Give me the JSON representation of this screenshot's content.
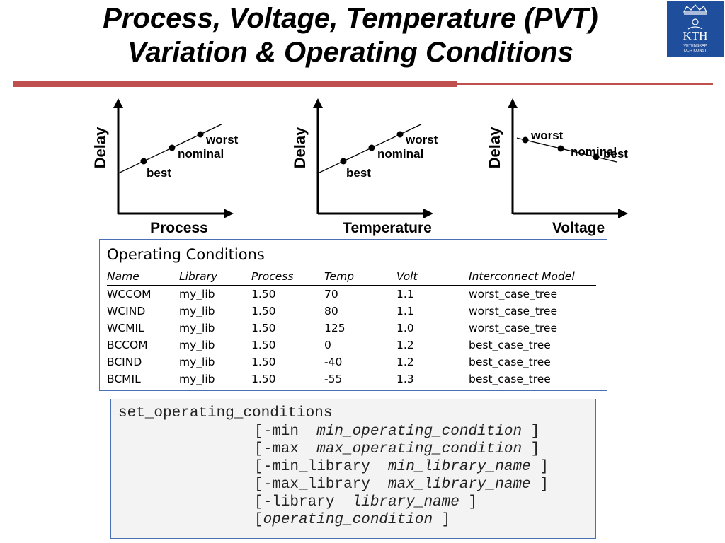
{
  "slide": {
    "title_line1": "Process, Voltage, Temperature (PVT)",
    "title_line2": "Variation & Operating Conditions",
    "logo_text": "KTH",
    "logo_subtext_1": "VETENSKAP",
    "logo_subtext_2": "OCH KONST"
  },
  "chart_data": [
    {
      "type": "scatter",
      "title": "",
      "xlabel": "Process",
      "ylabel": "Delay",
      "trend": "increasing",
      "points": [
        {
          "label": "best",
          "x": 1,
          "y": 1
        },
        {
          "label": "nominal",
          "x": 2,
          "y": 2
        },
        {
          "label": "worst",
          "x": 3,
          "y": 3
        }
      ]
    },
    {
      "type": "scatter",
      "title": "",
      "xlabel": "Temperature",
      "ylabel": "Delay",
      "trend": "increasing",
      "points": [
        {
          "label": "best",
          "x": 1,
          "y": 1
        },
        {
          "label": "nominal",
          "x": 2,
          "y": 2
        },
        {
          "label": "worst",
          "x": 3,
          "y": 3
        }
      ]
    },
    {
      "type": "scatter",
      "title": "",
      "xlabel": "Voltage",
      "ylabel": "Delay",
      "trend": "decreasing",
      "points": [
        {
          "label": "worst",
          "x": 1,
          "y": 3
        },
        {
          "label": "nominal",
          "x": 2,
          "y": 2
        },
        {
          "label": "best",
          "x": 3,
          "y": 1
        }
      ]
    }
  ],
  "operating_conditions": {
    "heading": "Operating Conditions",
    "columns": [
      "Name",
      "Library",
      "Process",
      "Temp",
      "Volt",
      "Interconnect Model"
    ],
    "rows": [
      [
        "WCCOM",
        "my_lib",
        "1.50",
        "70",
        "1.1",
        "worst_case_tree"
      ],
      [
        "WCIND",
        "my_lib",
        "1.50",
        "80",
        "1.1",
        "worst_case_tree"
      ],
      [
        "WCMIL",
        "my_lib",
        "1.50",
        "125",
        "1.0",
        "worst_case_tree"
      ],
      [
        "BCCOM",
        "my_lib",
        "1.50",
        "0",
        "1.2",
        "best_case_tree"
      ],
      [
        "BCIND",
        "my_lib",
        "1.50",
        "-40",
        "1.2",
        "best_case_tree"
      ],
      [
        "BCMIL",
        "my_lib",
        "1.50",
        "-55",
        "1.3",
        "best_case_tree"
      ]
    ]
  },
  "command": {
    "name": "set_operating_conditions",
    "lines": [
      {
        "open": "[-min  ",
        "arg": "min_operating_condition",
        "close": " ]"
      },
      {
        "open": "[-max  ",
        "arg": "max_operating_condition",
        "close": " ]"
      },
      {
        "open": "[-min_library  ",
        "arg": "min_library_name",
        "close": " ]"
      },
      {
        "open": "[-max_library  ",
        "arg": "max_library_name",
        "close": " ]"
      },
      {
        "open": "[-library  ",
        "arg": "library_name",
        "close": " ]"
      },
      {
        "open": "[",
        "arg": "operating_condition",
        "close": " ]"
      }
    ]
  }
}
